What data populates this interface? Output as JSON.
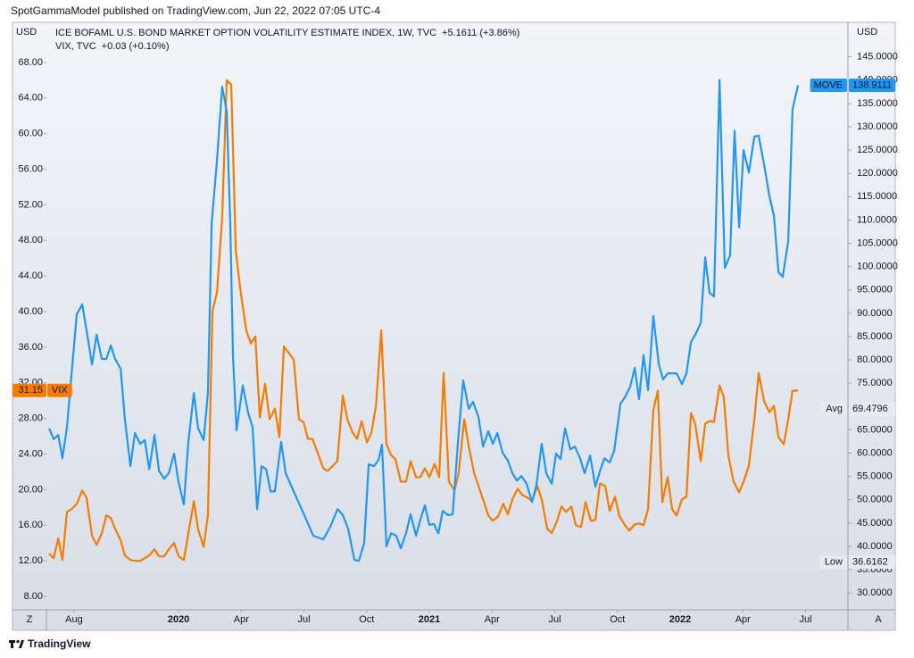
{
  "header": "SpotGammaModel published on TradingView.com, Jun 22, 2022 07:05 UTC-4",
  "footer": "TradingView",
  "controls": {
    "left": "Z",
    "right": "A"
  },
  "chart_data": {
    "type": "line",
    "ylabel": "USD",
    "y2label": "USD",
    "grid": false,
    "xlim": [
      2019.473,
      2022.669
    ],
    "xticks": [
      {
        "value": 2019.583,
        "label": "Aug"
      },
      2020,
      {
        "value": 2020.25,
        "label": "Apr"
      },
      {
        "value": 2020.5,
        "label": "Jul"
      },
      {
        "value": 2020.75,
        "label": "Oct"
      },
      2021,
      {
        "value": 2021.25,
        "label": "Apr"
      },
      {
        "value": 2021.5,
        "label": "Jul"
      },
      {
        "value": 2021.75,
        "label": "Oct"
      },
      2022,
      {
        "value": 2022.25,
        "label": "Apr"
      },
      {
        "value": 2022.5,
        "label": "Jul"
      }
    ],
    "ylim": [
      6.5,
      72.5
    ],
    "yticks": [
      {
        "value": 8,
        "label": "8.00"
      },
      {
        "value": 12,
        "label": "12.00"
      },
      {
        "value": 16,
        "label": "16.00"
      },
      {
        "value": 20,
        "label": "20.00"
      },
      {
        "value": 24,
        "label": "24.00"
      },
      {
        "value": 28,
        "label": "28.00"
      },
      {
        "value": 32,
        "label": "32.00"
      },
      {
        "value": 36,
        "label": "36.00"
      },
      {
        "value": 40,
        "label": "40.00"
      },
      {
        "value": 44,
        "label": "44.00"
      },
      {
        "value": 48,
        "label": "48.00"
      },
      {
        "value": 52,
        "label": "52.00"
      },
      {
        "value": 56,
        "label": "56.00"
      },
      {
        "value": 60,
        "label": "60.00"
      },
      {
        "value": 64,
        "label": "64.00"
      },
      {
        "value": 68,
        "label": "68.00"
      }
    ],
    "y2lim": [
      26.4,
      152.4
    ],
    "y2ticks": [
      {
        "value": 30,
        "label": "30.0000"
      },
      {
        "value": 35,
        "label": "35.0000"
      },
      {
        "value": 40,
        "label": "40.0000"
      },
      {
        "value": 45,
        "label": "45.0000"
      },
      {
        "value": 50,
        "label": "50.0000"
      },
      {
        "value": 55,
        "label": "55.0000"
      },
      {
        "value": 60,
        "label": "60.0000"
      },
      {
        "value": 65,
        "label": "65.0000"
      },
      {
        "value": 70,
        "label": "70.0000"
      },
      {
        "value": 75,
        "label": "75.0000"
      },
      {
        "value": 80,
        "label": "80.0000"
      },
      {
        "value": 85,
        "label": "85.0000"
      },
      {
        "value": 90,
        "label": "90.0000"
      },
      {
        "value": 95,
        "label": "95.0000"
      },
      {
        "value": 100,
        "label": "100.0000"
      },
      {
        "value": 105,
        "label": "105.0000"
      },
      {
        "value": 110,
        "label": "110.0000"
      },
      {
        "value": 115,
        "label": "115.0000"
      },
      {
        "value": 120,
        "label": "120.0000"
      },
      {
        "value": 125,
        "label": "125.0000"
      },
      {
        "value": 130,
        "label": "130.0000"
      },
      {
        "value": 135,
        "label": "135.0000"
      },
      {
        "value": 140,
        "label": "140.0000"
      },
      {
        "value": 145,
        "label": "145.0000"
      }
    ],
    "stats": [
      {
        "label": "Avg",
        "value": 69.4796
      },
      {
        "label": "Low",
        "value": 36.6162
      }
    ],
    "series": [
      {
        "name": "ICE BOFAML U.S. BOND MARKET OPTION VOLATILITY ESTIMATE INDEX, 1W, TVC",
        "tag": "MOVE",
        "change": "+5.1611 (+3.86%)",
        "color": "#2196f3",
        "axis": "y2",
        "x": [
          2019.484,
          2019.502,
          2019.52,
          2019.537,
          2019.555,
          2019.573,
          2019.594,
          2019.616,
          2019.633,
          2019.655,
          2019.673,
          2019.694,
          2019.712,
          2019.73,
          2019.747,
          2019.769,
          2019.786,
          2019.808,
          2019.826,
          2019.847,
          2019.865,
          2019.883,
          2019.904,
          2019.922,
          2019.943,
          2019.961,
          2019.982,
          2020.0,
          2020.021,
          2020.039,
          2020.061,
          2020.078,
          2020.1,
          2020.117,
          2020.132,
          2020.153,
          2020.174,
          2020.192,
          2020.206,
          2020.217,
          2020.231,
          2020.256,
          2020.278,
          2020.295,
          2020.313,
          2020.331,
          2020.349,
          2020.367,
          2020.384,
          2020.409,
          2020.427,
          2020.463,
          2020.498,
          2020.537,
          2020.577,
          2020.605,
          2020.634,
          2020.655,
          2020.676,
          2020.701,
          2020.719,
          2020.74,
          2020.758,
          2020.779,
          2020.797,
          2020.811,
          2020.829,
          2020.847,
          2020.868,
          2020.886,
          2020.908,
          2020.925,
          2020.947,
          2020.964,
          2020.982,
          2021.0,
          2021.018,
          2021.036,
          2021.053,
          2021.075,
          2021.093,
          2021.114,
          2021.135,
          2021.157,
          2021.174,
          2021.196,
          2021.214,
          2021.235,
          2021.253,
          2021.271,
          2021.292,
          2021.313,
          2021.331,
          2021.349,
          2021.367,
          2021.388,
          2021.409,
          2021.427,
          2021.448,
          2021.466,
          2021.488,
          2021.505,
          2021.523,
          2021.541,
          2021.562,
          2021.58,
          2021.601,
          2021.619,
          2021.641,
          2021.662,
          2021.68,
          2021.698,
          2021.719,
          2021.737,
          2021.762,
          2021.78,
          2021.801,
          2021.819,
          2021.836,
          2021.854,
          2021.872,
          2021.893,
          2021.915,
          2021.932,
          2021.95,
          2021.968,
          2021.986,
          2022.007,
          2022.025,
          2022.043,
          2022.064,
          2022.082,
          2022.1,
          2022.117,
          2022.135,
          2022.157,
          2022.178,
          2022.199,
          2022.217,
          2022.235,
          2022.253,
          2022.274,
          2022.296,
          2022.313,
          2022.335,
          2022.356,
          2022.374,
          2022.392,
          2022.409,
          2022.431,
          2022.448,
          2022.47
        ],
        "values": [
          65.3,
          63.0,
          63.9,
          58.9,
          65.6,
          76.8,
          89.8,
          91.9,
          86.3,
          79.0,
          85.4,
          80.2,
          80.2,
          83.1,
          80.2,
          78.1,
          67.2,
          57.2,
          64.3,
          62.0,
          62.8,
          56.6,
          63.9,
          56.2,
          54.5,
          55.7,
          59.9,
          53.8,
          49.0,
          62.4,
          72.9,
          65.3,
          62.8,
          72.9,
          109.3,
          122.7,
          138.6,
          133.3,
          109.3,
          80.6,
          64.9,
          74.5,
          68.5,
          65.6,
          48.0,
          57.2,
          56.6,
          51.8,
          51.8,
          62.4,
          55.7,
          51.3,
          47.1,
          42.3,
          41.5,
          44.2,
          48.0,
          46.7,
          43.8,
          37.1,
          36.9,
          40.7,
          57.6,
          57.2,
          58.5,
          61.8,
          40.0,
          42.8,
          42.3,
          39.6,
          43.0,
          46.9,
          42.3,
          45.7,
          48.8,
          44.6,
          44.8,
          42.8,
          47.6,
          46.7,
          46.9,
          62.4,
          75.6,
          69.5,
          71.0,
          67.7,
          61.4,
          64.7,
          62.0,
          64.3,
          60.1,
          58.4,
          55.7,
          54.1,
          55.1,
          53.4,
          49.5,
          53.2,
          62.0,
          55.7,
          53.4,
          59.9,
          58.7,
          65.3,
          60.8,
          61.4,
          58.9,
          55.7,
          59.5,
          52.8,
          56.1,
          58.9,
          58.0,
          60.5,
          70.6,
          72.0,
          74.3,
          78.3,
          71.6,
          81.0,
          73.5,
          89.4,
          79.0,
          75.8,
          77.1,
          77.1,
          77.1,
          74.8,
          77.1,
          83.8,
          85.8,
          87.9,
          102.0,
          94.4,
          93.6,
          140.0,
          99.7,
          102.4,
          129.1,
          108.4,
          125.0,
          120.2,
          127.9,
          128.1,
          121.8,
          115.1,
          110.9,
          98.8,
          97.8,
          105.5,
          133.7,
          138.9111
        ]
      },
      {
        "name": "VIX, TVC",
        "tag": "VIX",
        "change": "+0.03 (+0.10%)",
        "color": "#f57c00",
        "x": [
          2019.484,
          2019.502,
          2019.52,
          2019.537,
          2019.555,
          2019.573,
          2019.594,
          2019.616,
          2019.633,
          2019.655,
          2019.673,
          2019.694,
          2019.712,
          2019.73,
          2019.747,
          2019.769,
          2019.786,
          2019.808,
          2019.826,
          2019.847,
          2019.865,
          2019.883,
          2019.904,
          2019.922,
          2019.943,
          2019.961,
          2019.982,
          2020.0,
          2020.021,
          2020.039,
          2020.061,
          2020.078,
          2020.1,
          2020.117,
          2020.135,
          2020.153,
          2020.174,
          2020.192,
          2020.21,
          2020.228,
          2020.249,
          2020.27,
          2020.288,
          2020.306,
          2020.324,
          2020.345,
          2020.363,
          2020.384,
          2020.402,
          2020.42,
          2020.441,
          2020.459,
          2020.48,
          2020.498,
          2020.516,
          2020.534,
          2020.555,
          2020.577,
          2020.594,
          2020.616,
          2020.633,
          2020.655,
          2020.673,
          2020.694,
          2020.712,
          2020.73,
          2020.751,
          2020.769,
          2020.787,
          2020.808,
          2020.829,
          2020.847,
          2020.865,
          2020.886,
          2020.907,
          2020.925,
          2020.947,
          2020.964,
          2020.982,
          2021.0,
          2021.021,
          2021.039,
          2021.057,
          2021.078,
          2021.1,
          2021.117,
          2021.139,
          2021.157,
          2021.178,
          2021.196,
          2021.214,
          2021.235,
          2021.253,
          2021.274,
          2021.295,
          2021.313,
          2021.331,
          2021.352,
          2021.37,
          2021.391,
          2021.409,
          2021.431,
          2021.448,
          2021.47,
          2021.488,
          2021.509,
          2021.527,
          2021.545,
          2021.566,
          2021.584,
          2021.605,
          2021.623,
          2021.644,
          2021.662,
          2021.68,
          2021.701,
          2021.719,
          2021.74,
          2021.758,
          2021.78,
          2021.797,
          2021.819,
          2021.836,
          2021.854,
          2021.872,
          2021.893,
          2021.911,
          2021.929,
          2021.95,
          2021.968,
          2021.986,
          2022.007,
          2022.025,
          2022.043,
          2022.06,
          2022.082,
          2022.1,
          2022.117,
          2022.135,
          2022.157,
          2022.174,
          2022.192,
          2022.213,
          2022.235,
          2022.253,
          2022.274,
          2022.296,
          2022.313,
          2022.335,
          2022.356,
          2022.374,
          2022.392,
          2022.413,
          2022.431,
          2022.448,
          2022.47
        ],
        "values": [
          12.8,
          12.3,
          14.5,
          12.1,
          17.5,
          17.8,
          18.4,
          19.9,
          19.1,
          14.8,
          13.8,
          15.1,
          17.1,
          16.8,
          15.6,
          14.3,
          12.6,
          12.1,
          12.0,
          12.0,
          12.3,
          12.6,
          13.3,
          12.5,
          12.5,
          13.3,
          14.0,
          12.5,
          12.1,
          15.1,
          18.7,
          15.5,
          13.6,
          17.1,
          40.1,
          42.1,
          50.6,
          66.0,
          65.5,
          46.9,
          41.9,
          37.9,
          36.4,
          37.2,
          28.1,
          31.9,
          27.9,
          29.1,
          25.9,
          36.1,
          35.3,
          34.6,
          27.9,
          27.6,
          25.7,
          25.7,
          24.1,
          22.4,
          22.1,
          22.7,
          23.2,
          30.6,
          27.9,
          26.4,
          25.7,
          27.7,
          25.3,
          26.4,
          29.4,
          37.9,
          25.1,
          23.9,
          23.4,
          20.9,
          20.9,
          23.2,
          21.4,
          21.4,
          22.4,
          21.4,
          22.9,
          21.4,
          33.1,
          20.9,
          19.9,
          21.9,
          27.9,
          24.9,
          21.9,
          20.4,
          18.9,
          17.1,
          16.5,
          17.0,
          18.4,
          17.2,
          18.9,
          20.1,
          19.4,
          19.1,
          18.7,
          20.4,
          18.9,
          15.6,
          15.1,
          16.5,
          18.1,
          17.5,
          18.1,
          16.0,
          15.8,
          18.6,
          16.5,
          16.6,
          20.7,
          20.4,
          17.6,
          19.2,
          17.0,
          16.0,
          15.4,
          16.1,
          16.2,
          16.0,
          17.8,
          28.9,
          31.1,
          18.6,
          21.4,
          17.8,
          17.1,
          18.9,
          19.2,
          28.6,
          27.4,
          23.2,
          27.4,
          27.7,
          27.6,
          31.7,
          30.4,
          23.9,
          20.9,
          19.7,
          20.9,
          22.7,
          27.9,
          33.1,
          29.9,
          28.7,
          29.4,
          25.9,
          25.1,
          27.9,
          31.1,
          31.15
        ]
      }
    ]
  }
}
